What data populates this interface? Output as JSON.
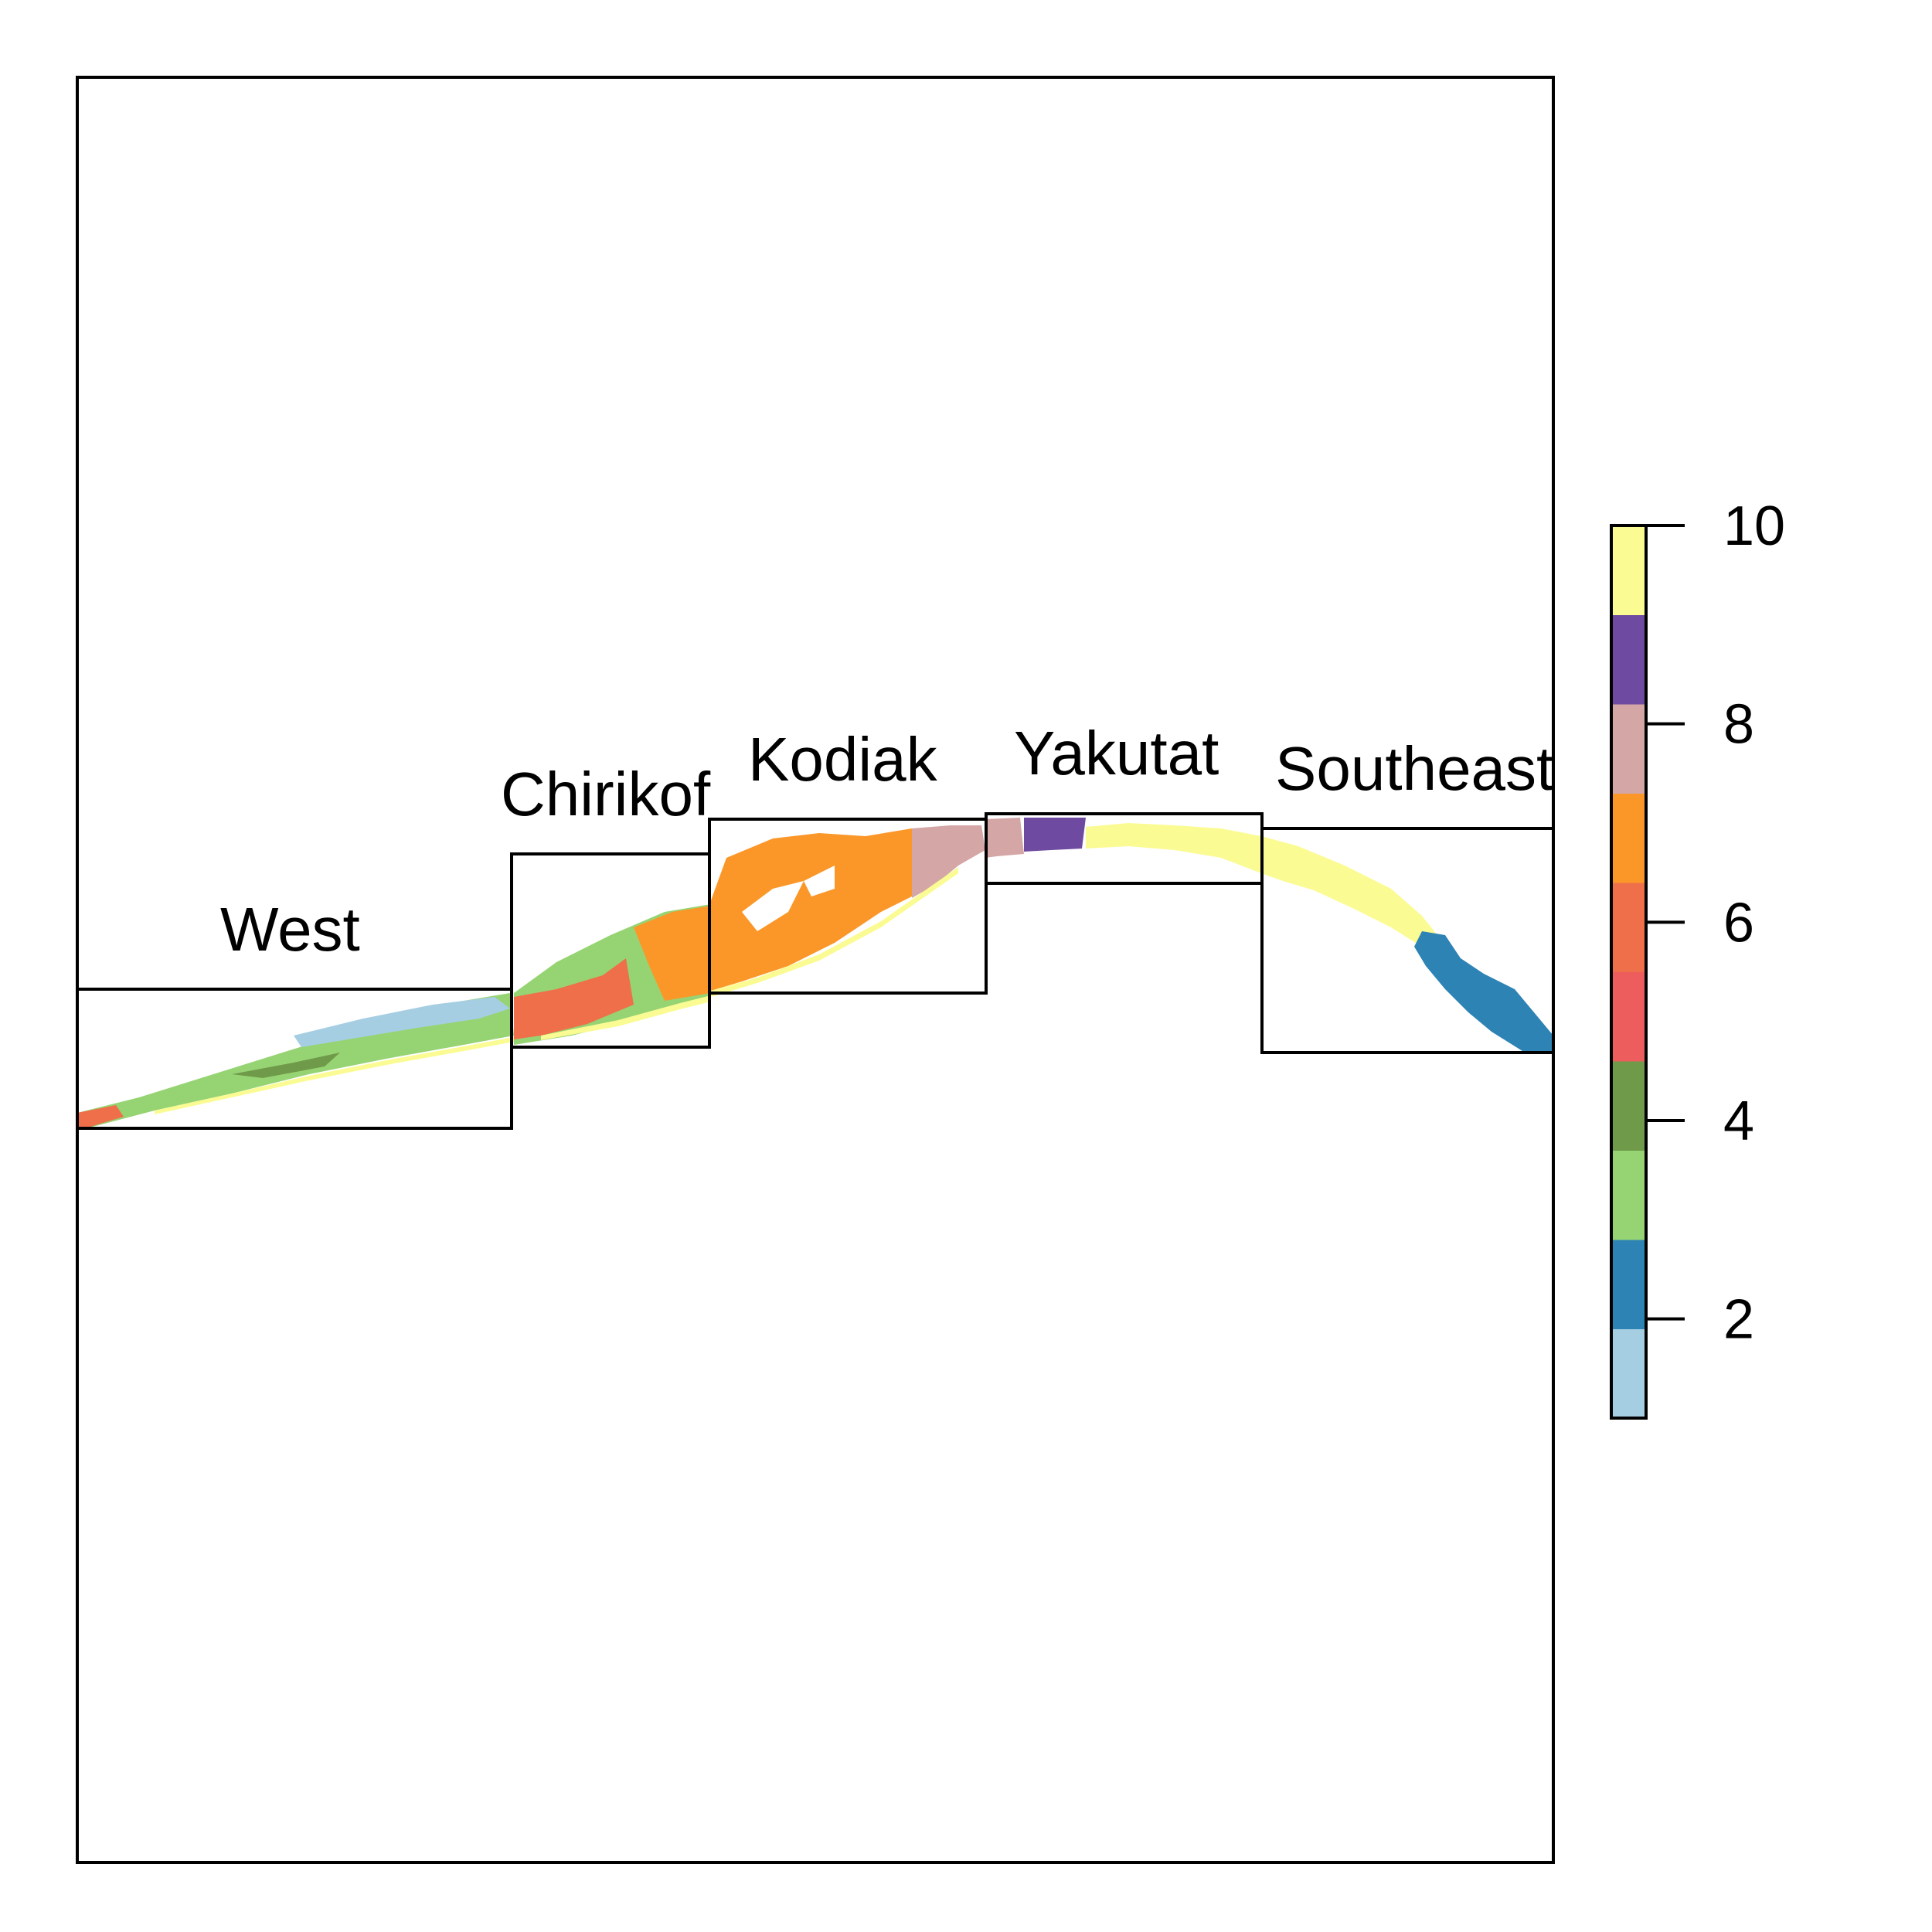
{
  "map": {
    "regions": [
      {
        "id": "west",
        "label": "West"
      },
      {
        "id": "chirikof",
        "label": "Chirikof"
      },
      {
        "id": "kodiak",
        "label": "Kodiak"
      },
      {
        "id": "yakutat",
        "label": "Yakutat"
      },
      {
        "id": "southeast",
        "label": "Southeast"
      }
    ]
  },
  "legend": {
    "range": [
      1,
      10
    ],
    "ticks": [
      "2",
      "4",
      "6",
      "8",
      "10"
    ],
    "tick_values": [
      2,
      4,
      6,
      8,
      10
    ],
    "colors": [
      "#a6cee3",
      "#1f78b4",
      "#b2df8a",
      "#33a02c",
      "#fb9a99",
      "#e31a1c",
      "#fdbf6f",
      "#ff7f00",
      "#cab2d6",
      "#6a3d9a",
      "#ffff99"
    ],
    "palette_used": [
      "#a6cee3",
      "#2e83b5",
      "#96d473",
      "#6f9a4a",
      "#ee5d5d",
      "#ee6f49",
      "#fb9729",
      "#d4a6a6",
      "#6e4aa0",
      "#fbfb93"
    ]
  }
}
